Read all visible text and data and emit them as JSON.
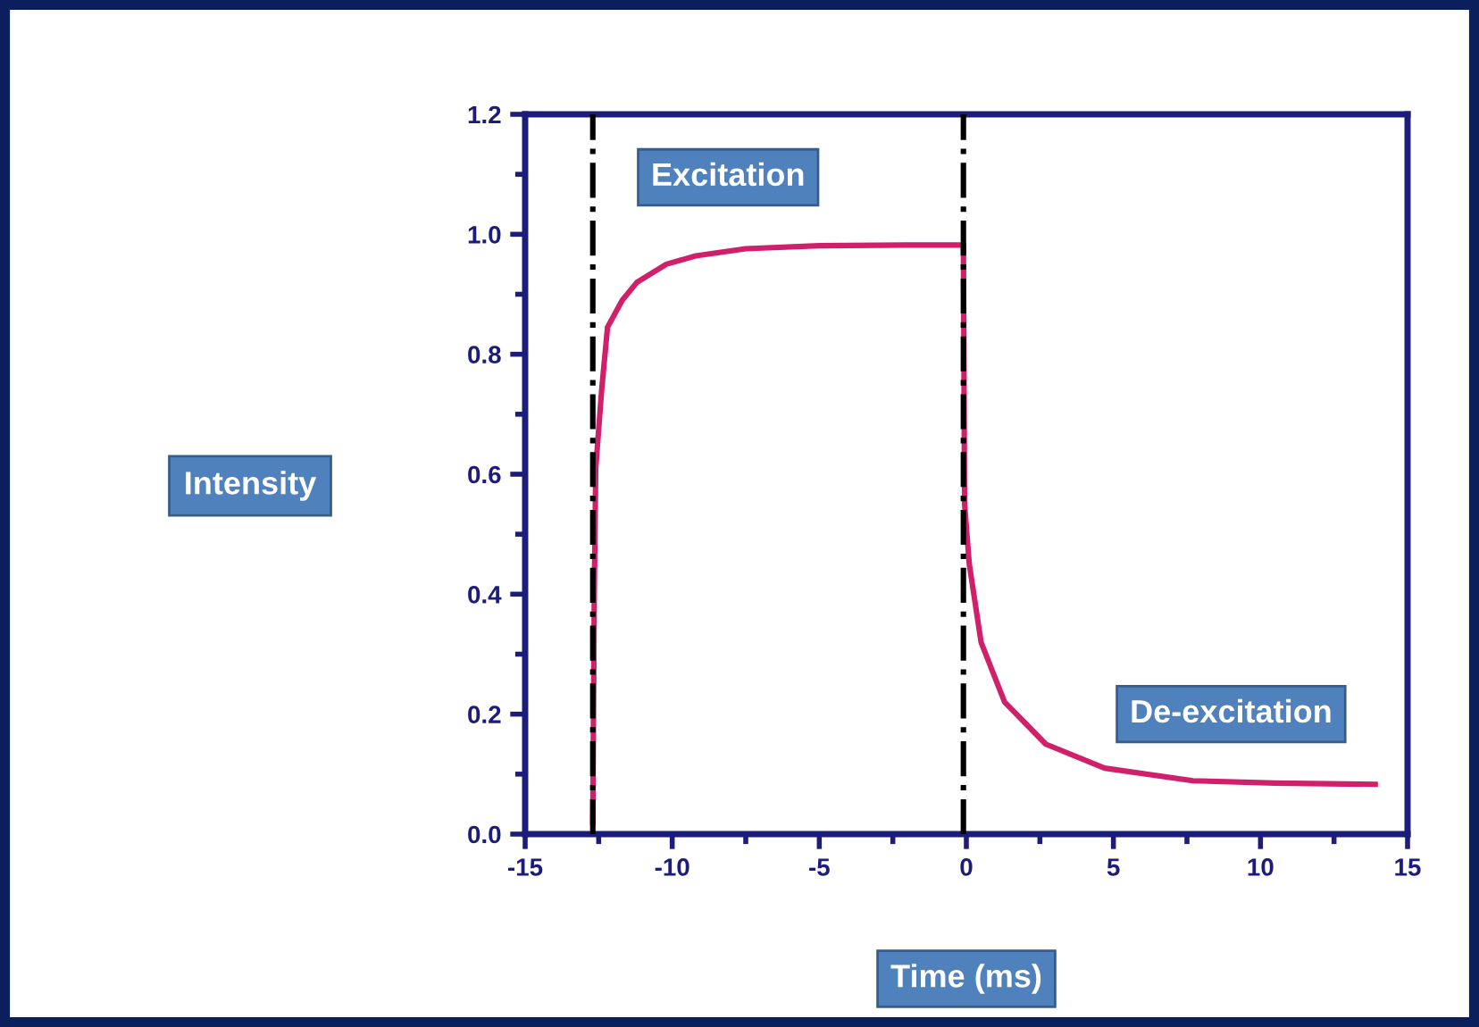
{
  "chart_data": {
    "type": "line",
    "xlabel": "Time (ms)",
    "ylabel": "Intensity",
    "annotations": [
      "Excitation",
      "De-excitation"
    ],
    "series": [
      {
        "color": "#d0206a",
        "x": [
          -12.7,
          -12.65,
          -12.6,
          -12.4,
          -12.2,
          -11.7,
          -11.2,
          -10.2,
          -9.2,
          -7.5,
          -5,
          -2,
          -0.1,
          -0.06,
          0.1,
          0.5,
          1.3,
          2.7,
          4.7,
          7.7,
          10.5,
          13.9
        ],
        "values": [
          0.02,
          0.4,
          0.61,
          0.74,
          0.845,
          0.89,
          0.92,
          0.95,
          0.964,
          0.976,
          0.981,
          0.982,
          0.982,
          0.55,
          0.45,
          0.32,
          0.22,
          0.15,
          0.11,
          0.089,
          0.085,
          0.083
        ]
      }
    ],
    "xlim": [
      -15,
      15
    ],
    "xticks": [
      -15,
      -10,
      -5,
      0,
      5,
      10,
      15
    ],
    "ylim": [
      0.0,
      1.2
    ],
    "yticks": [
      {
        "value": 0,
        "label": "0.0"
      },
      {
        "value": 0.2,
        "label": "0.2"
      },
      {
        "value": 0.4,
        "label": "0.4"
      },
      {
        "value": 0.6,
        "label": "0.6"
      },
      {
        "value": 0.8,
        "label": "0.8"
      },
      {
        "value": 1.0,
        "label": "1.0"
      },
      {
        "value": 1.2,
        "label": "1.2"
      }
    ],
    "ref_lines": [
      {
        "axis": "x",
        "value": -12.7,
        "color": "#000000",
        "line_style": "dashdot"
      },
      {
        "axis": "x",
        "value": -0.1,
        "color": "#000000",
        "line_style": "dashdot"
      }
    ],
    "grid": false,
    "marker": "none",
    "line_style": "solid"
  }
}
